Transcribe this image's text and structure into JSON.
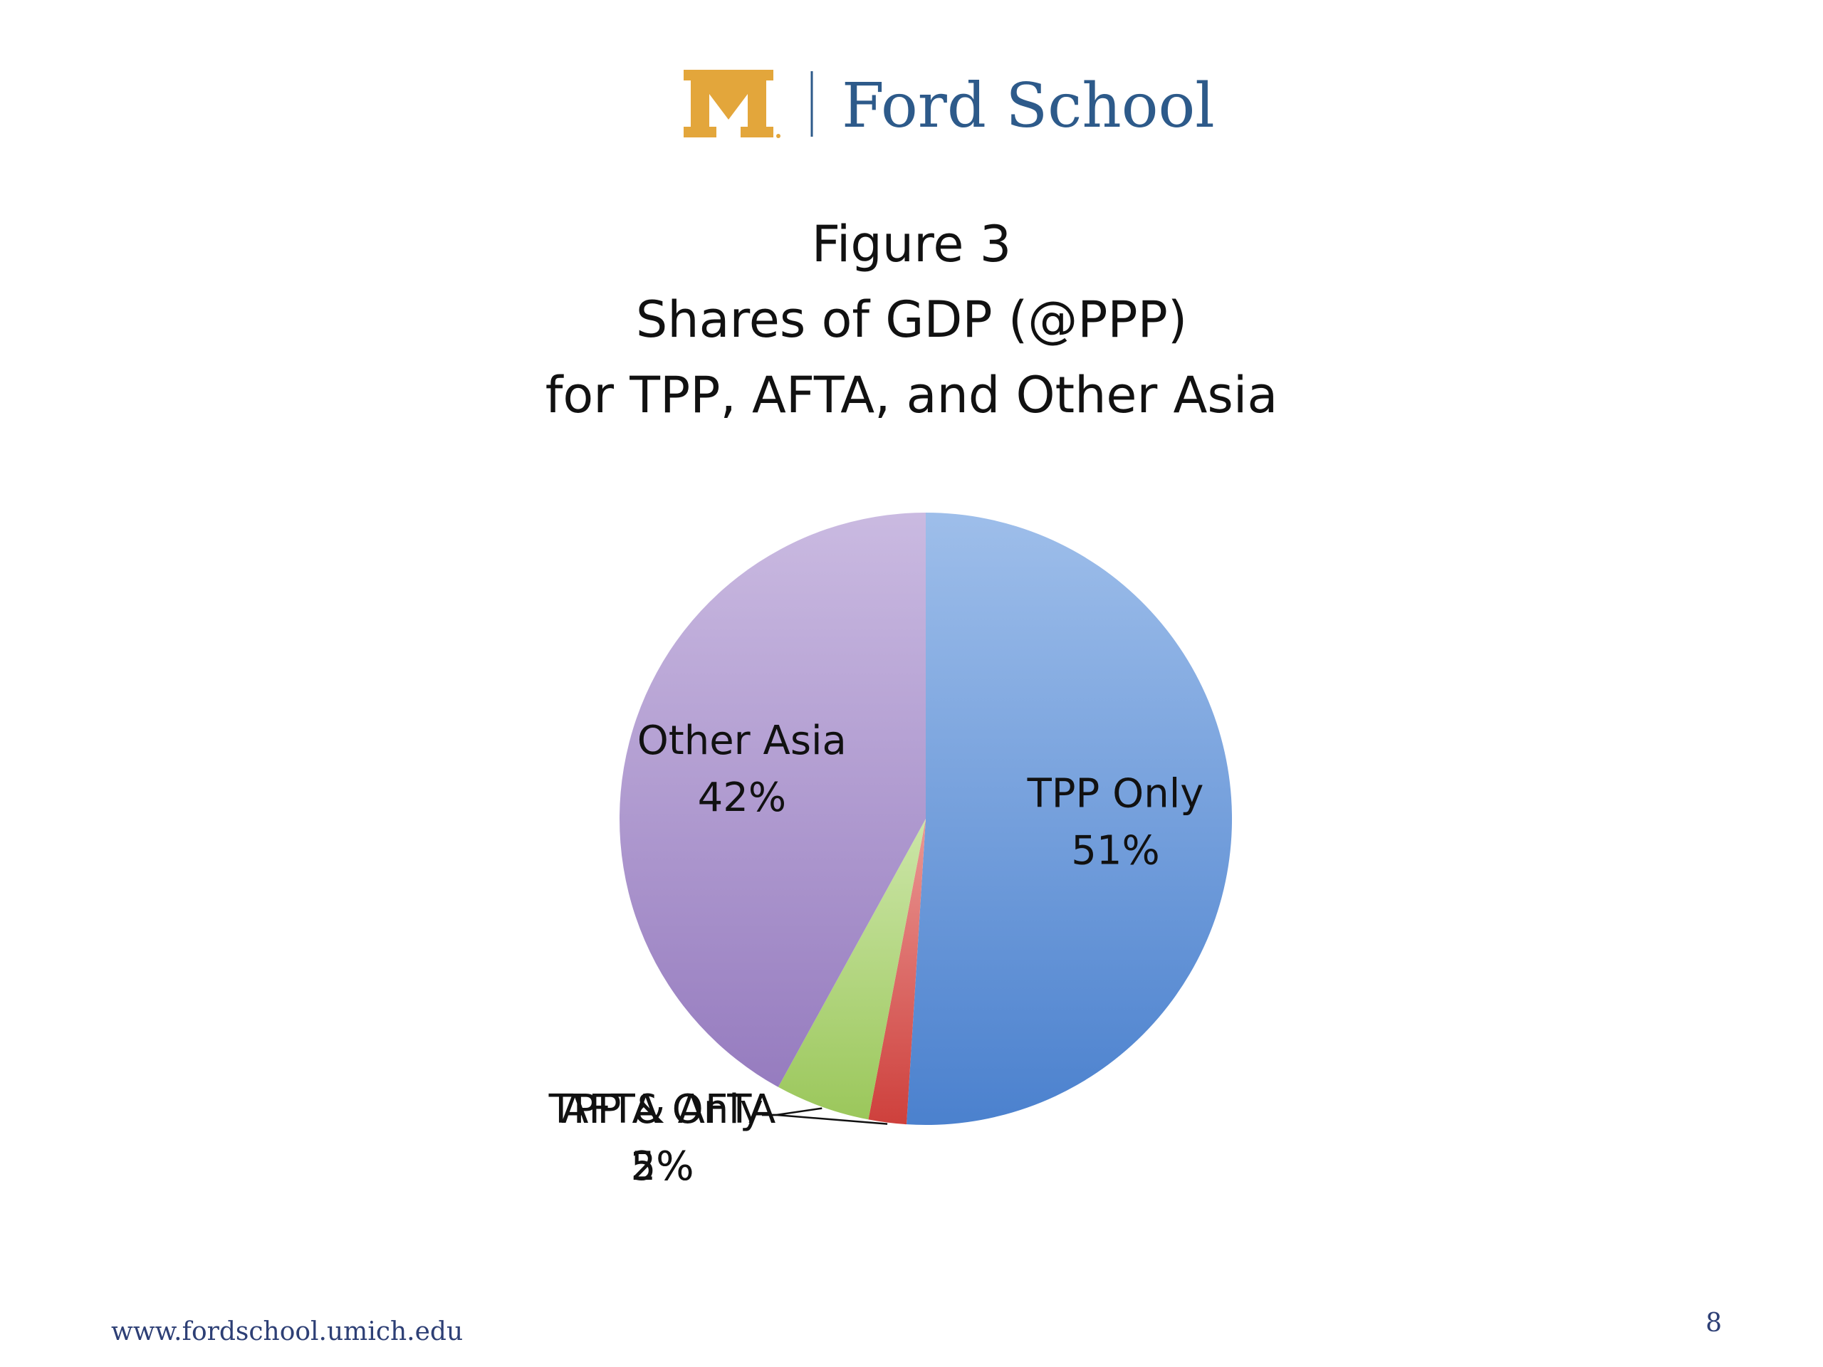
{
  "header": {
    "logo_mark_text": "M",
    "logo_text": "Ford School",
    "colors": {
      "maize": "#E3A63B",
      "blue": "#2D5A8A"
    }
  },
  "chart_data": {
    "type": "pie",
    "title_lines": [
      "Figure 3",
      "Shares of GDP (@PPP)",
      "for TPP, AFTA, and Other Asia"
    ],
    "slices": [
      {
        "name": "TPP Only",
        "value": 51,
        "label": "51%",
        "color": "#4F88D9"
      },
      {
        "name": "TPP & AFTA",
        "value": 2,
        "label": "2%",
        "color": "#D9433F"
      },
      {
        "name": "AFTA Only",
        "value": 5,
        "label": "5%",
        "color": "#A3D160"
      },
      {
        "name": "Other Asia",
        "value": 42,
        "label": "42%",
        "color": "#9E82C9"
      }
    ],
    "start_angle_deg": 0,
    "direction": "clockwise"
  },
  "footer": {
    "url": "www.fordschool.umich.edu",
    "page_number": "8"
  }
}
